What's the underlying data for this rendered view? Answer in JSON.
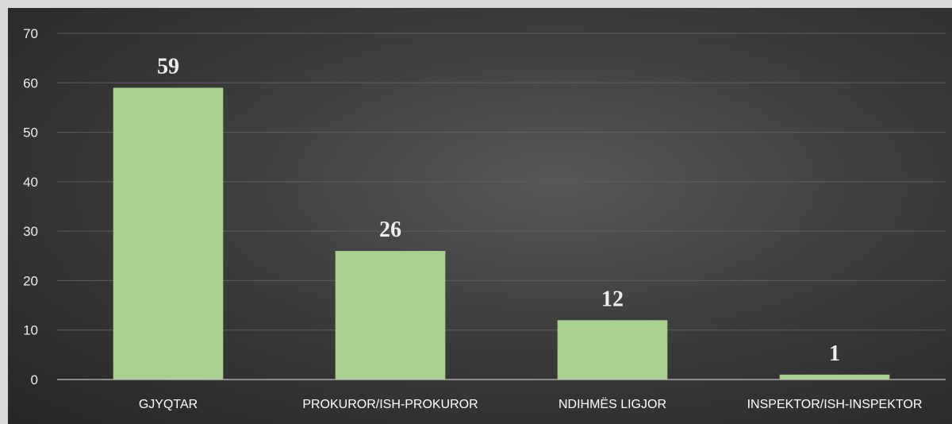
{
  "chart_data": {
    "type": "bar",
    "categories": [
      "GJYQTAR",
      "PROKUROR/ISH-PROKUROR",
      "NDIHMËS LIGJOR",
      "INSPEKTOR/ISH-INSPEKTOR"
    ],
    "values": [
      59,
      26,
      12,
      1
    ],
    "data_labels": [
      "59",
      "26",
      "12",
      "1"
    ],
    "yticks": [
      "0",
      "10",
      "20",
      "30",
      "40",
      "50",
      "60",
      "70"
    ],
    "ylim": [
      0,
      70
    ],
    "grid": true,
    "legend": "none",
    "title": "",
    "xlabel": "",
    "ylabel": "",
    "colors": {
      "bar": "#a9d18e",
      "background": "#404040",
      "outer": "#d9d9d9"
    }
  }
}
